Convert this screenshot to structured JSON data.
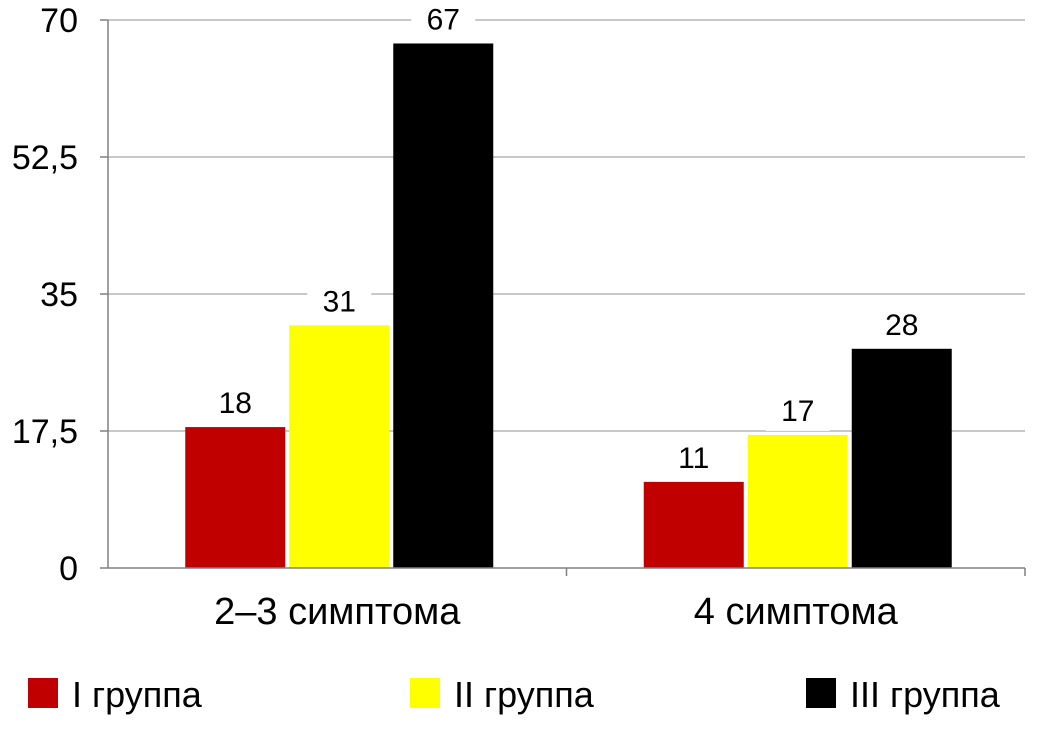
{
  "chart_data": {
    "type": "bar",
    "categories": [
      "2–3 симптома",
      "4 симптома"
    ],
    "series": [
      {
        "name": "I группа",
        "values": [
          18,
          11
        ],
        "color": "#c00000"
      },
      {
        "name": "II группа",
        "values": [
          31,
          17
        ],
        "color": "#ffff00"
      },
      {
        "name": "III группа",
        "values": [
          67,
          28
        ],
        "color": "#000000"
      }
    ],
    "ylim": [
      0,
      70
    ],
    "yticks": [
      0,
      17.5,
      35,
      52.5,
      70
    ],
    "ytick_labels": [
      "0",
      "17,5",
      "35",
      "52,5",
      "70"
    ],
    "grid": true,
    "legend_position": "bottom"
  }
}
